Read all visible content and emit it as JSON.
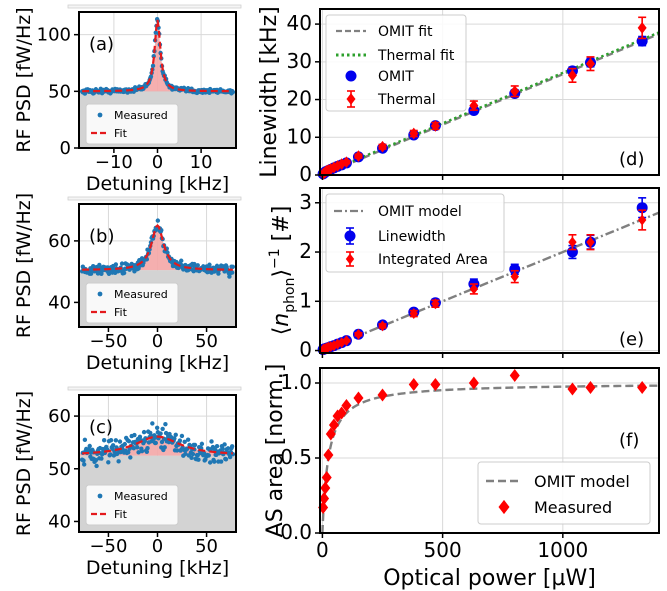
{
  "colors": {
    "measured": "#1f77b4",
    "fit": "#e41a1c",
    "omit_fit": "#808080",
    "thermal_fit": "#2ca02c",
    "omit": "#0000ee",
    "thermal": "#ff0000",
    "fill_gray": "#d3d3d3",
    "fill_pink": "#f4a6a6",
    "grid": "#d9d9d9"
  },
  "chart_data": [
    {
      "id": "a",
      "type": "scatter",
      "panel_label": "(a)",
      "xlabel": "Detuning [kHz]",
      "ylabel": "RF PSD [fW/Hz]",
      "xlim": [
        -18,
        18
      ],
      "ylim": [
        0,
        120
      ],
      "xticks": [
        -10,
        0,
        10
      ],
      "xticklabels": [
        "−10",
        "0",
        "10"
      ],
      "yticks": [
        0,
        50,
        100
      ],
      "yticklabels": [
        "0",
        "50",
        "100"
      ],
      "grid": true,
      "legend_position": "lower-center",
      "series": [
        {
          "name": "Measured",
          "kind": "points",
          "baseline": 50,
          "peak": 63,
          "hwhm": 0.8,
          "noise": 1.5
        },
        {
          "name": "Fit",
          "kind": "lorentzian",
          "baseline": 50,
          "peak": 63,
          "hwhm": 0.8
        }
      ]
    },
    {
      "id": "b",
      "type": "scatter",
      "panel_label": "(b)",
      "xlabel": "Detuning [kHz]",
      "ylabel": "RF PSD [fW/Hz]",
      "xlim": [
        -80,
        80
      ],
      "ylim": [
        32,
        72
      ],
      "xticks": [
        -50,
        0,
        50
      ],
      "xticklabels": [
        "−50",
        "0",
        "50"
      ],
      "yticks": [
        40,
        60
      ],
      "yticklabels": [
        "40",
        "60"
      ],
      "grid": true,
      "legend_position": "lower-center",
      "series": [
        {
          "name": "Measured",
          "kind": "points",
          "baseline": 50.5,
          "peak": 14.5,
          "hwhm": 7.5,
          "noise": 1.2
        },
        {
          "name": "Fit",
          "kind": "lorentzian",
          "baseline": 50.5,
          "peak": 14.5,
          "hwhm": 7.5
        }
      ]
    },
    {
      "id": "c",
      "type": "scatter",
      "panel_label": "(c)",
      "xlabel": "Detuning [kHz]",
      "ylabel": "RF PSD [fW/Hz]",
      "xlim": [
        -80,
        80
      ],
      "ylim": [
        38,
        64
      ],
      "xticks": [
        -50,
        0,
        50
      ],
      "xticklabels": [
        "−50",
        "0",
        "50"
      ],
      "yticks": [
        40,
        50,
        60
      ],
      "yticklabels": [
        "40",
        "50",
        "60"
      ],
      "grid": true,
      "legend_position": "lower-center",
      "series": [
        {
          "name": "Measured",
          "kind": "points",
          "baseline": 52.5,
          "peak": 3.6,
          "hwhm": 28,
          "noise": 1.6
        },
        {
          "name": "Fit",
          "kind": "lorentzian",
          "baseline": 52.5,
          "peak": 3.6,
          "hwhm": 28
        }
      ]
    },
    {
      "id": "d",
      "type": "scatter",
      "panel_label": "(d)",
      "xlabel": "",
      "ylabel": "Linewidth [kHz]",
      "xlim": [
        -10,
        1400
      ],
      "ylim": [
        0,
        44
      ],
      "yticks": [
        0,
        10,
        20,
        30,
        40
      ],
      "yticklabels": [
        "0",
        "10",
        "20",
        "30",
        "40"
      ],
      "xticks": [
        0,
        500,
        1000
      ],
      "grid": true,
      "legend_position": "top-left",
      "fits": [
        {
          "name": "OMIT fit",
          "style": "dashed",
          "x": [
            0,
            1400
          ],
          "y": [
            0.0,
            37.4
          ]
        },
        {
          "name": "Thermal fit",
          "style": "dotted",
          "x": [
            0,
            1400
          ],
          "y": [
            0.3,
            37.8
          ]
        }
      ],
      "series": [
        {
          "name": "OMIT",
          "marker": "circle",
          "x": [
            3,
            7,
            12,
            18,
            25,
            35,
            48,
            63,
            80,
            100,
            150,
            250,
            380,
            470,
            630,
            800,
            1040,
            1115,
            1330
          ],
          "y": [
            0.3,
            0.5,
            0.8,
            1.0,
            1.2,
            1.5,
            1.9,
            2.3,
            2.7,
            3.2,
            4.8,
            7.1,
            10.6,
            13.1,
            17.1,
            21.6,
            27.6,
            29.8,
            35.5
          ],
          "yerr": [
            0.2,
            0.2,
            0.2,
            0.2,
            0.2,
            0.2,
            0.3,
            0.3,
            0.3,
            0.3,
            0.4,
            0.5,
            0.6,
            0.7,
            0.8,
            0.9,
            1.0,
            1.1,
            1.2
          ]
        },
        {
          "name": "Thermal",
          "marker": "diamond",
          "x": [
            3,
            7,
            12,
            18,
            25,
            35,
            48,
            63,
            80,
            100,
            150,
            250,
            380,
            470,
            630,
            800,
            1040,
            1115,
            1330
          ],
          "y": [
            0.3,
            0.5,
            0.8,
            1.1,
            1.3,
            1.6,
            2.0,
            2.4,
            2.9,
            3.4,
            5.0,
            7.5,
            11.0,
            13.0,
            18.4,
            22.2,
            26.4,
            29.5,
            39.0
          ],
          "yerr": [
            0.2,
            0.2,
            0.2,
            0.2,
            0.2,
            0.3,
            0.3,
            0.3,
            0.3,
            0.4,
            0.5,
            0.6,
            0.8,
            0.9,
            1.2,
            1.4,
            1.8,
            1.8,
            2.8
          ]
        }
      ]
    },
    {
      "id": "e",
      "type": "scatter",
      "panel_label": "(e)",
      "xlabel": "",
      "ylabel": "⟨n_phon⟩⁻¹ [#]",
      "ylabel_parts": {
        "lang": "⟨",
        "italic": "n",
        "sub": "phon",
        "rang": "⟩",
        "sup": "−1",
        "unit": " [#]"
      },
      "xlim": [
        -10,
        1400
      ],
      "ylim": [
        -0.05,
        3.3
      ],
      "yticks": [
        0,
        1,
        2,
        3
      ],
      "yticklabels": [
        "0",
        "1",
        "2",
        "3"
      ],
      "xticks": [
        0,
        500,
        1000
      ],
      "grid": true,
      "legend_position": "top-left",
      "fits": [
        {
          "name": "OMIT model",
          "style": "dashdot",
          "x": [
            0,
            1400
          ],
          "y": [
            0.0,
            2.8
          ]
        }
      ],
      "series": [
        {
          "name": "Linewidth",
          "marker": "circle",
          "x": [
            3,
            7,
            12,
            18,
            25,
            35,
            48,
            63,
            80,
            100,
            150,
            250,
            380,
            470,
            630,
            800,
            1040,
            1115,
            1330
          ],
          "y": [
            0.02,
            0.03,
            0.04,
            0.05,
            0.06,
            0.08,
            0.1,
            0.13,
            0.16,
            0.2,
            0.33,
            0.52,
            0.78,
            0.97,
            1.35,
            1.65,
            2.0,
            2.2,
            2.9
          ],
          "yerr": [
            0.01,
            0.01,
            0.01,
            0.01,
            0.01,
            0.02,
            0.02,
            0.02,
            0.02,
            0.02,
            0.03,
            0.04,
            0.06,
            0.07,
            0.1,
            0.1,
            0.13,
            0.14,
            0.2
          ]
        },
        {
          "name": "Integrated Area",
          "marker": "diamond",
          "x": [
            3,
            7,
            12,
            18,
            25,
            35,
            48,
            63,
            80,
            100,
            150,
            250,
            380,
            470,
            630,
            800,
            1040,
            1115,
            1330
          ],
          "y": [
            0.02,
            0.03,
            0.04,
            0.05,
            0.07,
            0.08,
            0.1,
            0.13,
            0.16,
            0.2,
            0.33,
            0.5,
            0.75,
            0.95,
            1.25,
            1.5,
            2.2,
            2.2,
            2.65
          ],
          "yerr": [
            0.01,
            0.01,
            0.01,
            0.01,
            0.01,
            0.02,
            0.02,
            0.02,
            0.02,
            0.02,
            0.03,
            0.04,
            0.06,
            0.07,
            0.1,
            0.12,
            0.15,
            0.15,
            0.2
          ]
        }
      ]
    },
    {
      "id": "f",
      "type": "scatter",
      "panel_label": "(f)",
      "xlabel": "Optical power [µW]",
      "ylabel": "AS area [norm.]",
      "xlim": [
        -10,
        1400
      ],
      "ylim": [
        0,
        1.1
      ],
      "xticks": [
        0,
        500,
        1000
      ],
      "xticklabels": [
        "0",
        "500",
        "1000"
      ],
      "yticks": [
        0,
        0.5,
        1.0
      ],
      "yticklabels": [
        "0.0",
        "0.5",
        "1.0"
      ],
      "grid": true,
      "legend_position": "bottom-right",
      "fits": [
        {
          "name": "OMIT model",
          "style": "dashed",
          "model": "saturation",
          "amp": 1.0,
          "x0": 25
        }
      ],
      "series": [
        {
          "name": "Measured",
          "marker": "diamond",
          "x": [
            3,
            7,
            12,
            18,
            25,
            35,
            48,
            63,
            80,
            100,
            150,
            250,
            380,
            470,
            630,
            800,
            1040,
            1115,
            1330
          ],
          "y": [
            0.17,
            0.23,
            0.3,
            0.37,
            0.52,
            0.66,
            0.72,
            0.78,
            0.8,
            0.85,
            0.9,
            0.92,
            0.99,
            0.99,
            1.0,
            1.05,
            0.96,
            0.97,
            0.97
          ]
        }
      ]
    }
  ]
}
